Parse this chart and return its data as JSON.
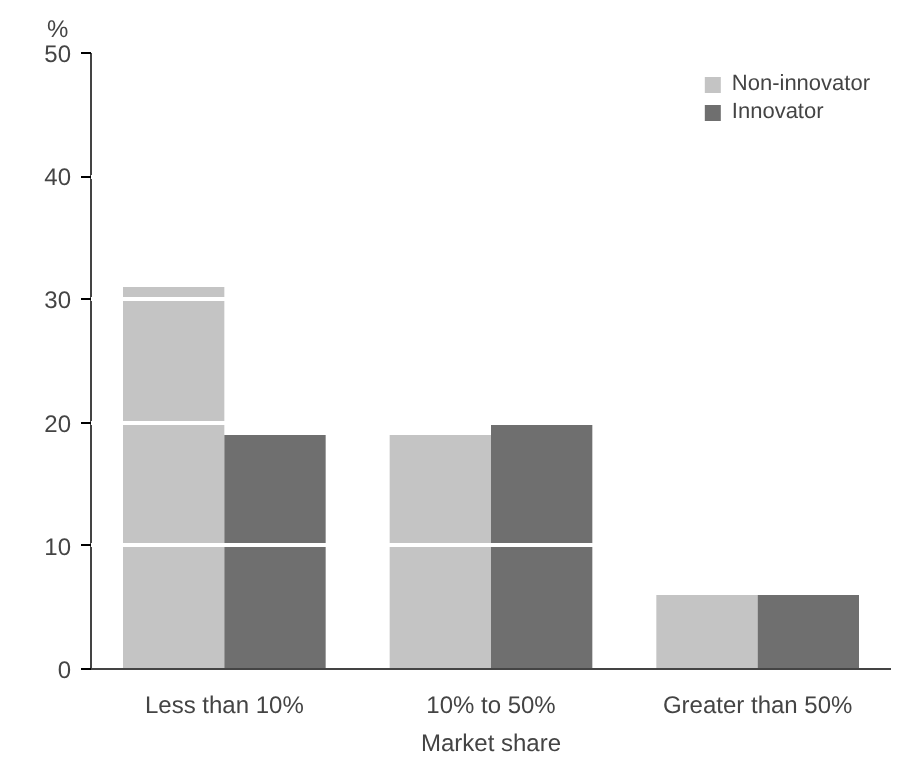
{
  "chart_data": {
    "type": "bar",
    "ylabel": "%",
    "xlabel": "Market share",
    "categories": [
      "Less than 10%",
      "10% to 50%",
      "Greater than 50%"
    ],
    "series": [
      {
        "name": "Non-innovator",
        "color": "#c4c4c4",
        "values": [
          31,
          19,
          6
        ]
      },
      {
        "name": "Innovator",
        "color": "#6f6f6f",
        "values": [
          19,
          20,
          6
        ]
      }
    ],
    "ylim": [
      0,
      50
    ],
    "yticks": [
      0,
      10,
      20,
      30,
      40,
      50
    ],
    "grid": "y",
    "legend": "top right"
  }
}
